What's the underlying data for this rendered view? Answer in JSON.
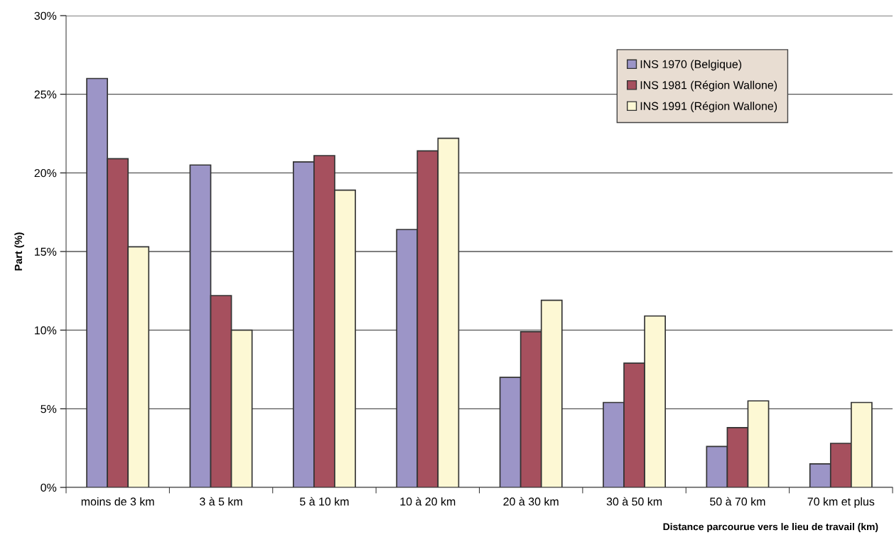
{
  "chart_data": {
    "type": "bar",
    "xlabel": "Distance parcourue vers le lieu de travail (km)",
    "ylabel": "Part (%)",
    "categories": [
      "moins de 3 km",
      "3 à 5 km",
      "5 à 10 km",
      "10 à 20 km",
      "20 à 30 km",
      "30 à 50 km",
      "50 à 70 km",
      "70 km et plus"
    ],
    "series": [
      {
        "name": "INS 1970 (Belgique)",
        "color": "#9c95c7",
        "values": [
          26.0,
          20.5,
          20.7,
          16.4,
          7.0,
          5.4,
          2.6,
          1.5
        ]
      },
      {
        "name": "INS 1981 (Région Wallone)",
        "color": "#a6505e",
        "values": [
          20.9,
          12.2,
          21.1,
          21.4,
          9.9,
          7.9,
          3.8,
          2.8
        ]
      },
      {
        "name": "INS 1991 (Région Wallone)",
        "color": "#fdf8d4",
        "values": [
          15.3,
          10.0,
          18.9,
          22.2,
          11.9,
          10.9,
          5.5,
          5.4
        ]
      }
    ],
    "ylim": [
      0,
      30
    ],
    "yticks": [
      {
        "value": 0,
        "label": "0%"
      },
      {
        "value": 5,
        "label": "5%"
      },
      {
        "value": 10,
        "label": "10%"
      },
      {
        "value": 15,
        "label": "15%"
      },
      {
        "value": 20,
        "label": "20%"
      },
      {
        "value": 25,
        "label": "25%"
      },
      {
        "value": 30,
        "label": "30%"
      }
    ],
    "grid": "y",
    "legend": "top right"
  }
}
